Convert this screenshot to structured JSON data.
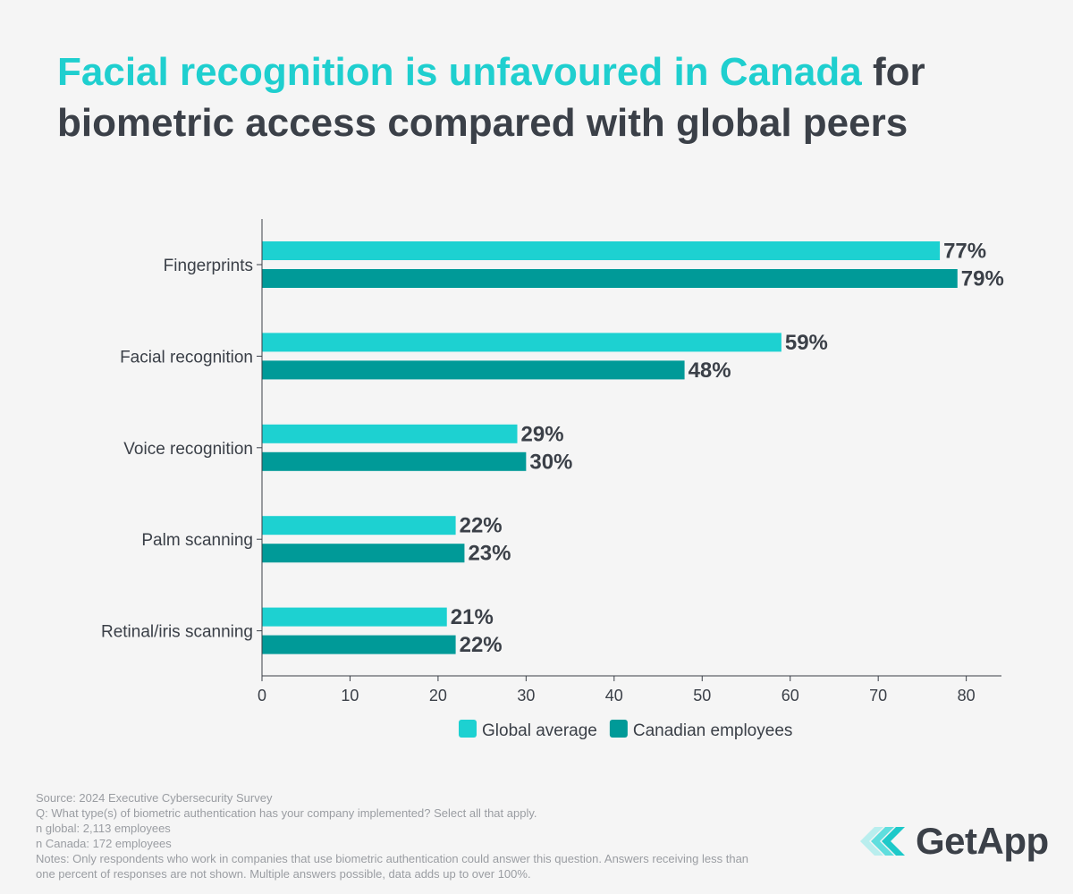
{
  "title": {
    "highlight": "Facial recognition is unfavoured in Canada",
    "rest": " for biometric access compared with global peers"
  },
  "colors": {
    "global": "#1dd1d1",
    "canada": "#009a98",
    "text": "#3b4048",
    "axis": "#3b4048"
  },
  "chart_data": {
    "type": "bar",
    "orientation": "horizontal",
    "title": "Facial recognition is unfavoured in Canada for biometric access compared with global peers",
    "categories": [
      "Fingerprints",
      "Facial recognition",
      "Voice recognition",
      "Palm scanning",
      "Retinal/iris scanning"
    ],
    "series": [
      {
        "name": "Global average",
        "values": [
          77,
          59,
          29,
          22,
          21
        ],
        "labels": [
          "77%",
          "59%",
          "29%",
          "22%",
          "21%"
        ]
      },
      {
        "name": "Canadian employees",
        "values": [
          79,
          48,
          30,
          23,
          22
        ],
        "labels": [
          "79%",
          "48%",
          "30%",
          "23%",
          "22%"
        ]
      }
    ],
    "xlim": [
      0,
      84
    ],
    "xticks": [
      0,
      10,
      20,
      30,
      40,
      50,
      60,
      70,
      80
    ],
    "xtick_labels": [
      "0",
      "10",
      "20",
      "30",
      "40",
      "50",
      "60",
      "70",
      "80"
    ],
    "xlabel": "",
    "ylabel": "",
    "legend": [
      "Global average",
      "Canadian employees"
    ],
    "legend_position": "bottom"
  },
  "footnotes": [
    "Source: 2024 Executive Cybersecurity Survey",
    "Q: What type(s) of biometric authentication has your company implemented? Select all that apply.",
    "n global: 2,113 employees",
    "n Canada: 172 employees",
    "Notes: Only respondents who work in companies that use biometric authentication could answer this question. Answers receiving less than one percent of responses are not shown. Multiple answers possible, data adds up to over 100%."
  ],
  "logo": {
    "text": "GetApp",
    "icon": "getapp-chevrons-icon"
  }
}
